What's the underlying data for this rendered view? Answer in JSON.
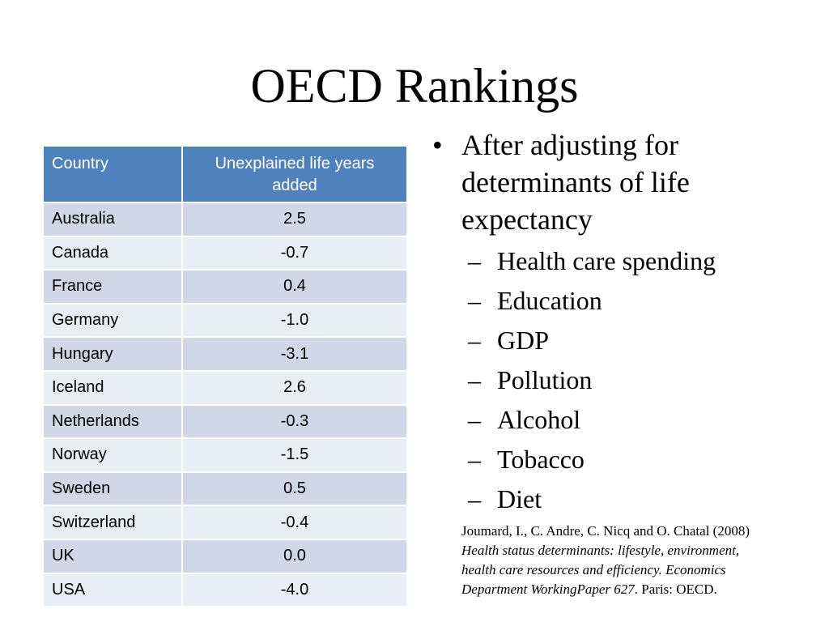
{
  "title": "OECD Rankings",
  "table": {
    "headers": [
      "Country",
      "Unexplained  life years added"
    ],
    "rows": [
      [
        "Australia",
        "2.5"
      ],
      [
        "Canada",
        "-0.7"
      ],
      [
        "France",
        "0.4"
      ],
      [
        "Germany",
        "-1.0"
      ],
      [
        "Hungary",
        "-3.1"
      ],
      [
        "Iceland",
        "2.6"
      ],
      [
        "Netherlands",
        "-0.3"
      ],
      [
        "Norway",
        "-1.5"
      ],
      [
        "Sweden",
        "0.5"
      ],
      [
        "Switzerland",
        "-0.4"
      ],
      [
        "UK",
        "0.0"
      ],
      [
        "USA",
        "-4.0"
      ]
    ]
  },
  "colors": {
    "header_bg": "#4f81bd",
    "row_odd": "#d0d8e8",
    "row_even": "#e9edf4"
  },
  "bullets": {
    "main": "After adjusting for determinants of life expectancy",
    "sub": [
      "Health care spending",
      "Education",
      "GDP",
      "Pollution",
      "Alcohol",
      "Tobacco",
      "Diet"
    ]
  },
  "reference": {
    "prefix": "Joumard, I., C. Andre, C. Nicq and O. Chatal (2008) ",
    "italic": "Health status determinants: lifestyle, environment, health care resources and efficiency. Economics Department WorkingPaper 627",
    "suffix": ". Paris: OECD."
  }
}
